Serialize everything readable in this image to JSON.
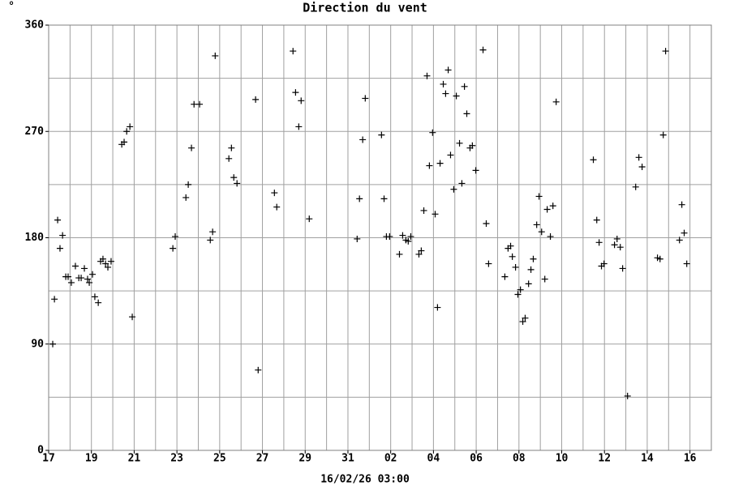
{
  "chart_data": {
    "type": "scatter",
    "title": "Direction du vent",
    "unit_label": "°",
    "xlabel": "16/02/26 03:00",
    "x": [
      0.19,
      0.27,
      0.42,
      0.53,
      0.65,
      0.8,
      0.91,
      1.06,
      1.25,
      1.41,
      1.52,
      1.67,
      1.82,
      1.9,
      2.05,
      2.16,
      2.32,
      2.43,
      2.54,
      2.66,
      2.77,
      2.92,
      3.42,
      3.53,
      3.65,
      3.8,
      3.91,
      5.81,
      5.92,
      6.42,
      6.53,
      6.68,
      6.8,
      7.06,
      7.56,
      7.67,
      7.79,
      8.43,
      8.55,
      8.66,
      8.81,
      9.68,
      9.8,
      10.56,
      10.67,
      11.43,
      11.55,
      11.7,
      11.81,
      12.19,
      14.43,
      14.54,
      14.69,
      14.81,
      15.57,
      15.69,
      15.8,
      15.95,
      16.41,
      16.56,
      16.71,
      16.82,
      16.94,
      17.32,
      17.43,
      17.55,
      17.7,
      17.81,
      17.96,
      18.08,
      18.19,
      18.31,
      18.46,
      18.57,
      18.69,
      18.8,
      18.95,
      19.07,
      19.22,
      19.33,
      19.45,
      19.56,
      19.71,
      19.82,
      19.98,
      20.32,
      20.47,
      20.58,
      21.34,
      21.49,
      21.61,
      21.69,
      21.84,
      21.95,
      22.07,
      22.18,
      22.29,
      22.45,
      22.56,
      22.67,
      22.83,
      22.94,
      23.06,
      23.21,
      23.32,
      23.47,
      23.59,
      23.74,
      25.48,
      25.64,
      25.75,
      25.86,
      25.98,
      26.47,
      26.59,
      26.74,
      26.85,
      27.08,
      27.46,
      27.61,
      27.76,
      28.48,
      28.6,
      28.75,
      28.86,
      29.51,
      29.62,
      29.73,
      29.85
    ],
    "y": [
      90,
      128,
      195,
      171,
      182,
      147,
      147,
      142,
      156,
      146,
      146,
      154,
      145,
      142,
      149,
      130,
      125,
      160,
      162,
      158,
      155,
      160,
      259,
      261,
      270,
      274,
      113,
      171,
      181,
      214,
      225,
      256,
      293,
      293,
      178,
      185,
      334,
      247,
      256,
      231,
      226,
      297,
      68,
      218,
      206,
      338,
      303,
      274,
      296,
      196,
      179,
      213,
      263,
      298,
      267,
      213,
      181,
      181,
      166,
      182,
      178,
      177,
      181,
      166,
      169,
      203,
      317,
      241,
      269,
      200,
      121,
      243,
      310,
      302,
      322,
      250,
      221,
      300,
      260,
      226,
      308,
      285,
      256,
      258,
      237,
      339,
      192,
      158,
      147,
      171,
      173,
      164,
      155,
      132,
      136,
      109,
      112,
      141,
      153,
      162,
      191,
      215,
      185,
      145,
      204,
      181,
      207,
      295,
      246,
      195,
      176,
      156,
      158,
      174,
      179,
      172,
      154,
      46,
      223,
      248,
      240,
      163,
      162,
      267,
      338,
      178,
      208,
      184,
      158
    ],
    "color": "#000000",
    "xlim": [
      0,
      31
    ],
    "ylim": [
      0,
      360
    ],
    "xticks": [
      {
        "value": 0,
        "label": "17"
      },
      {
        "value": 2,
        "label": "19"
      },
      {
        "value": 4,
        "label": "21"
      },
      {
        "value": 6,
        "label": "23"
      },
      {
        "value": 8,
        "label": "25"
      },
      {
        "value": 10,
        "label": "27"
      },
      {
        "value": 12,
        "label": "29"
      },
      {
        "value": 14,
        "label": "31"
      },
      {
        "value": 16,
        "label": "02"
      },
      {
        "value": 18,
        "label": "04"
      },
      {
        "value": 20,
        "label": "06"
      },
      {
        "value": 22,
        "label": "08"
      },
      {
        "value": 24,
        "label": "10"
      },
      {
        "value": 26,
        "label": "12"
      },
      {
        "value": 28,
        "label": "14"
      },
      {
        "value": 30,
        "label": "16"
      }
    ],
    "yticks": [
      0,
      90,
      180,
      270,
      360
    ],
    "xgrid": [
      0,
      1,
      2,
      3,
      4,
      5,
      6,
      7,
      8,
      9,
      10,
      11,
      12,
      13,
      14,
      15,
      16,
      17,
      18,
      19,
      20,
      21,
      22,
      23,
      24,
      25,
      26,
      27,
      28,
      29,
      30,
      31
    ],
    "ygrid": [
      0,
      45,
      90,
      135,
      180,
      225,
      270,
      315,
      360
    ],
    "grid": true
  }
}
